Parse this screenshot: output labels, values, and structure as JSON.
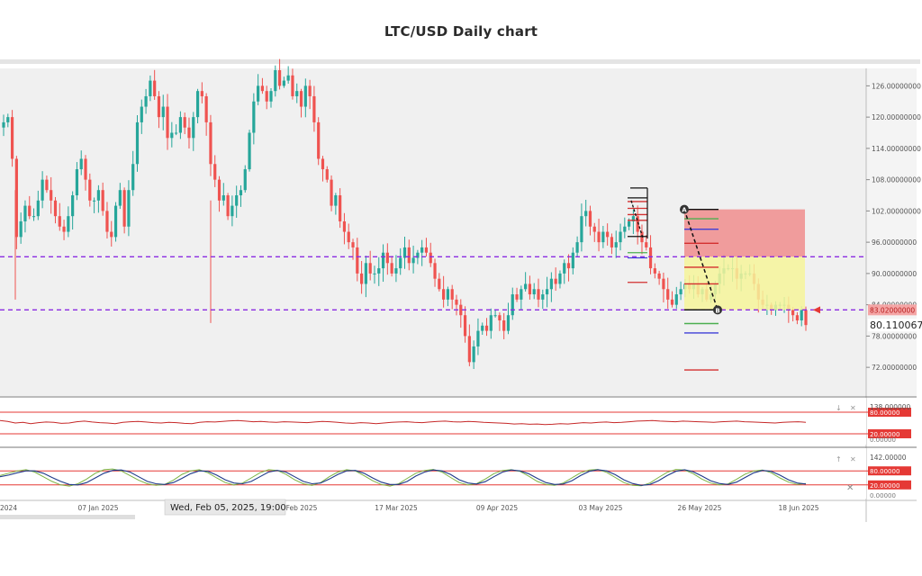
{
  "title": "LTC/USD Daily chart",
  "colors": {
    "bull": "#26a69a",
    "bear": "#ef5350",
    "dashed_level": "#8a2be2",
    "rsi": "#c62828",
    "band": "#e53935",
    "stop_zone": "#f08080",
    "target_zone": "#f6f59a"
  },
  "chart_data": {
    "type": "candlestick",
    "title": "LTC/USD Daily chart",
    "y_ticks": [
      "126.00000000",
      "120.00000000",
      "114.00000000",
      "108.00000000",
      "102.00000000",
      "96.00000000",
      "90.00000000",
      "84.00000000",
      "78.00000000",
      "72.00000000"
    ],
    "x_ticks": [
      "2024",
      "07 Jan 2025",
      "Feb 2025",
      "17 Mar 2025",
      "09 Apr 2025",
      "03 May 2025",
      "26 May 2025",
      "18 Jun 2025"
    ],
    "ylim": [
      66.5,
      129
    ],
    "x_range": [
      "2024-11-26",
      "2025-06-25"
    ],
    "crosshair_date": "Wed, Feb 05, 2025, 19:00",
    "horizontal_levels": [
      93.2,
      83.02
    ],
    "price_label": "83.02000000",
    "last_price": "80.110067",
    "closes": [
      119,
      120,
      112,
      97,
      100,
      103,
      101,
      101,
      104,
      108,
      106,
      104,
      101,
      99,
      98,
      101,
      105,
      110,
      112,
      108,
      104,
      104,
      106,
      102,
      98,
      97,
      103,
      106,
      99,
      106,
      111,
      119,
      122,
      124,
      127,
      124,
      120,
      122,
      116,
      117,
      117,
      120,
      118,
      116,
      120,
      125,
      124,
      119,
      111,
      108,
      104,
      105,
      101,
      103,
      105,
      106,
      110,
      117,
      123,
      126,
      125,
      123,
      125,
      129,
      126,
      127,
      128,
      124,
      125,
      122,
      126,
      124,
      119,
      112,
      110,
      108,
      103,
      105,
      100,
      98,
      96,
      95,
      90,
      88,
      92,
      90,
      90,
      91,
      94,
      92,
      90,
      91,
      93,
      95,
      92,
      93,
      94,
      95,
      94,
      92,
      89,
      87,
      85,
      87,
      85,
      84,
      82,
      78,
      73,
      76,
      79,
      80,
      79,
      82,
      82,
      81,
      79,
      82,
      86,
      85,
      87,
      88,
      86,
      87,
      85,
      86,
      87,
      89,
      88,
      90,
      92,
      91,
      94,
      96,
      101,
      102,
      99,
      98,
      96,
      98,
      97,
      95,
      96,
      98,
      99,
      100,
      101,
      98,
      96,
      95,
      91,
      90,
      89,
      87,
      85,
      84,
      86,
      87,
      88,
      87,
      88,
      86,
      87,
      85,
      86,
      88,
      90,
      91,
      91,
      91,
      89,
      90,
      90,
      90,
      88,
      85,
      84,
      84,
      83,
      84,
      84,
      84,
      83,
      82,
      81,
      83,
      80.11
    ],
    "trade_setup": {
      "points": [
        {
          "label": "A",
          "value": 102.3
        },
        {
          "label": "B",
          "value": 83.02
        }
      ],
      "zone_top": 102.3,
      "zone_mid": 93.2,
      "zone_bottom": 83.02,
      "fib_levels": [
        100.5,
        98.5,
        95.8,
        91.2,
        88.0,
        83.02,
        80.4,
        78.6,
        71.5
      ]
    },
    "rsi": {
      "values": [
        58,
        55,
        50,
        52,
        48,
        51,
        53,
        52,
        49,
        50,
        54,
        56,
        53,
        51,
        50,
        48,
        52,
        54,
        55,
        53,
        51,
        50,
        52,
        51,
        49,
        48,
        52,
        54,
        53,
        55,
        57,
        58,
        56,
        54,
        55,
        53,
        52,
        54,
        53,
        52,
        51,
        53,
        55,
        54,
        52,
        50,
        49,
        51,
        50,
        48,
        50,
        52,
        53,
        54,
        52,
        51,
        53,
        55,
        56,
        54,
        53,
        55,
        54,
        52,
        51,
        50,
        49,
        47,
        48,
        46,
        47,
        45,
        46,
        48,
        47,
        49,
        51,
        50,
        52,
        53,
        51,
        52,
        54,
        56,
        57,
        58,
        56,
        55,
        54,
        56,
        55,
        54,
        53,
        52,
        54,
        55,
        56,
        54,
        53,
        52,
        51,
        50,
        52,
        53,
        54,
        52
      ],
      "top_tick": "138.000000",
      "levels": [
        80,
        20
      ],
      "level_labels": [
        "80.00000",
        "20.00000"
      ],
      "bottom_tick": "0.00000"
    },
    "stochastic": {
      "k": [
        60,
        70,
        80,
        85,
        75,
        55,
        35,
        20,
        15,
        25,
        45,
        70,
        85,
        88,
        80,
        60,
        40,
        25,
        18,
        22,
        40,
        65,
        80,
        85,
        72,
        50,
        30,
        20,
        28,
        50,
        72,
        85,
        82,
        65,
        42,
        25,
        18,
        30,
        55,
        75,
        85,
        80,
        60,
        38,
        22,
        15,
        25,
        48,
        70,
        82,
        86,
        75,
        52,
        30,
        20,
        25,
        45,
        68,
        82,
        85,
        78,
        58,
        35,
        22,
        18,
        28,
        50,
        72,
        84,
        86,
        74,
        52,
        30,
        18,
        16,
        28,
        52,
        74,
        86,
        84,
        68,
        45,
        28,
        20,
        24,
        44,
        66,
        80,
        84,
        72,
        50,
        32,
        22,
        26
      ],
      "d": [
        55,
        62,
        72,
        80,
        80,
        70,
        52,
        35,
        22,
        20,
        30,
        50,
        70,
        82,
        84,
        75,
        55,
        35,
        25,
        22,
        30,
        48,
        68,
        80,
        78,
        62,
        42,
        28,
        25,
        35,
        55,
        75,
        82,
        75,
        55,
        35,
        25,
        28,
        45,
        65,
        80,
        82,
        70,
        50,
        32,
        22,
        22,
        35,
        58,
        75,
        84,
        80,
        65,
        42,
        28,
        24,
        34,
        55,
        75,
        84,
        80,
        68,
        48,
        30,
        22,
        24,
        38,
        60,
        78,
        85,
        80,
        64,
        42,
        26,
        18,
        22,
        38,
        60,
        78,
        85,
        76,
        58,
        38,
        26,
        22,
        32,
        52,
        72,
        82,
        78,
        62,
        42,
        28,
        24
      ],
      "top_tick": "142.00000",
      "levels": [
        80,
        20
      ],
      "level_labels": [
        "80.00000",
        "20.00000"
      ],
      "bottom_tick": "0.00000"
    }
  }
}
